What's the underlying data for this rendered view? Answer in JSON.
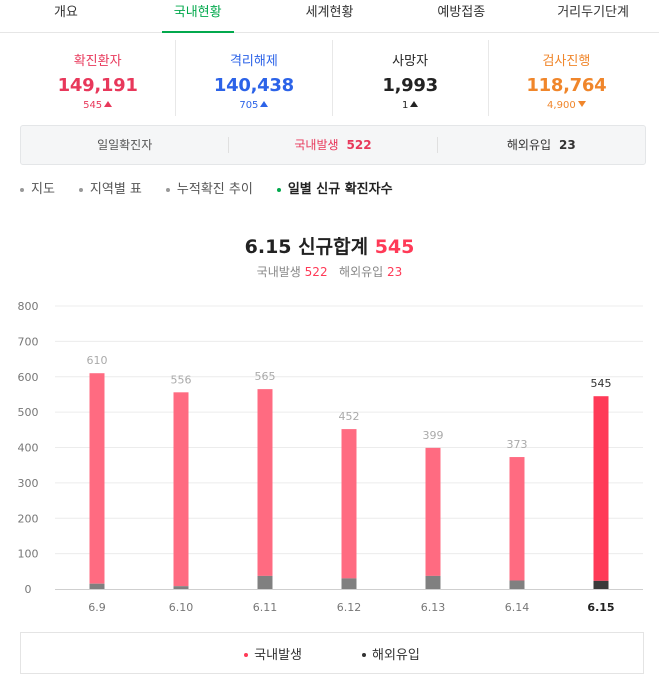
{
  "tabs": [
    "개요",
    "국내현황",
    "세계현황",
    "예방접종",
    "거리두기단계"
  ],
  "active_tab": 1,
  "stats": [
    {
      "label": "확진환자",
      "value": "149,191",
      "delta": "545",
      "direction": "up",
      "color": "#e8385b"
    },
    {
      "label": "격리해제",
      "value": "140,438",
      "delta": "705",
      "direction": "up",
      "color": "#2c63e8"
    },
    {
      "label": "사망자",
      "value": "1,993",
      "delta": "1",
      "direction": "up",
      "color": "#222222"
    },
    {
      "label": "검사진행",
      "value": "118,764",
      "delta": "4,900",
      "direction": "down",
      "color": "#f0862b"
    }
  ],
  "daily": {
    "label": "일일확진자",
    "domestic_label": "국내발생",
    "domestic_value": "522",
    "overseas_label": "해외유입",
    "overseas_value": "23"
  },
  "filters": [
    "지도",
    "지역별 표",
    "누적확진 추이",
    "일별 신규 확진자수"
  ],
  "active_filter": 3,
  "headline": {
    "date": "6.15",
    "label": "신규합계",
    "total": "545"
  },
  "sub": {
    "domestic_label": "국내발생",
    "domestic": "522",
    "overseas_label": "해외유입",
    "overseas": "23"
  },
  "colors": {
    "accent": "#03a94d",
    "domestic": "#ff6b81",
    "domestic_today": "#ff3a57",
    "overseas": "#808080",
    "overseas_today": "#3a3a3a"
  },
  "chart_data": {
    "type": "bar",
    "stacked": true,
    "categories": [
      "6.9",
      "6.10",
      "6.11",
      "6.12",
      "6.13",
      "6.14",
      "6.15"
    ],
    "totals": [
      610,
      556,
      565,
      452,
      399,
      373,
      545
    ],
    "series": [
      {
        "name": "국내발생",
        "values": [
          595,
          548,
          528,
          422,
          362,
          349,
          522
        ]
      },
      {
        "name": "해외유입",
        "values": [
          15,
          8,
          37,
          30,
          37,
          24,
          23
        ]
      }
    ],
    "yticks": [
      0,
      100,
      200,
      300,
      400,
      500,
      600,
      700,
      800
    ],
    "ylim": [
      0,
      800
    ],
    "grid": true
  },
  "legend": [
    "국내발생",
    "해외유입"
  ]
}
